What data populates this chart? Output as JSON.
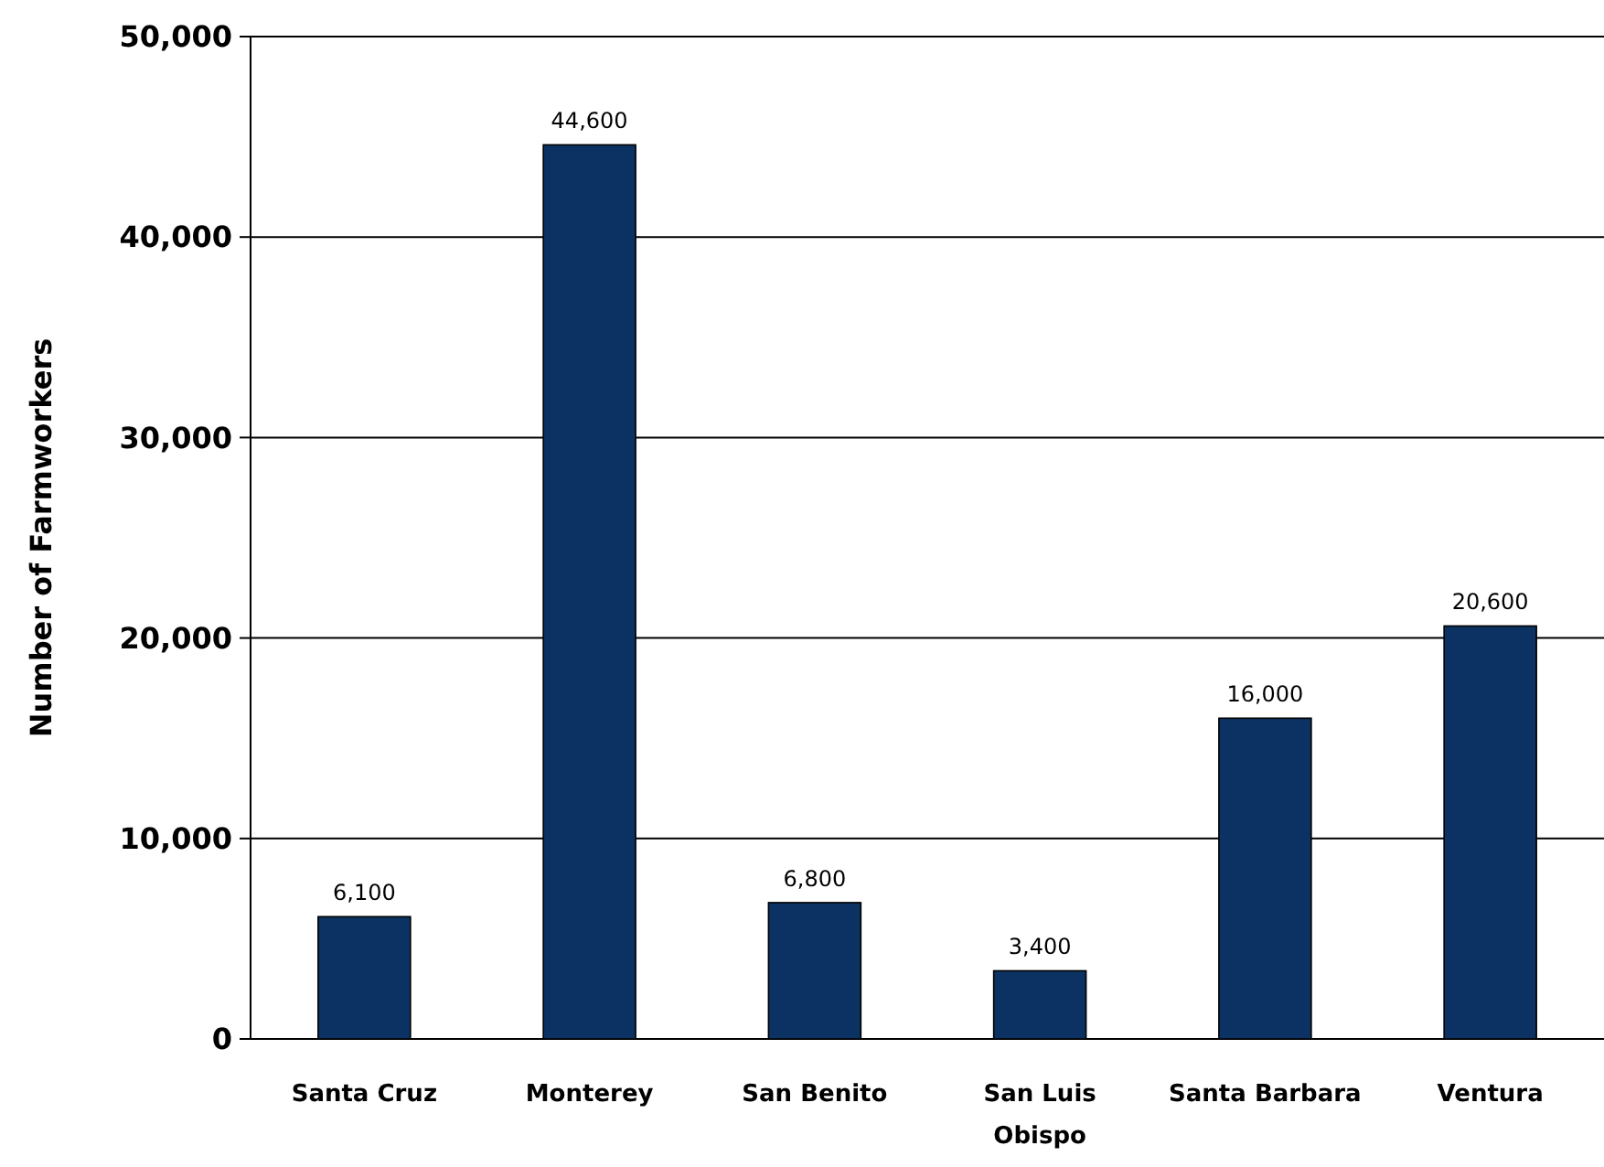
{
  "chart_data": {
    "type": "bar",
    "ylabel": "Number of Farmworkers",
    "categories": [
      "Santa Cruz",
      "Monterey",
      "San Benito",
      "San Luis Obispo",
      "Santa Barbara",
      "Ventura"
    ],
    "values": [
      6100,
      44600,
      6800,
      3400,
      16000,
      20600
    ],
    "color": "#0b3262",
    "ylim": [
      0,
      50000
    ],
    "yticks": [
      {
        "value": 0,
        "label": "0"
      },
      {
        "value": 10000,
        "label": "10,000"
      },
      {
        "value": 20000,
        "label": "20,000"
      },
      {
        "value": 30000,
        "label": "30,000"
      },
      {
        "value": 40000,
        "label": "40,000"
      },
      {
        "value": 50000,
        "label": "50,000"
      }
    ],
    "grid": "y",
    "value_labels": [
      "6,100",
      "44,600",
      "6,800",
      "3,400",
      "16,000",
      "20,600"
    ]
  }
}
